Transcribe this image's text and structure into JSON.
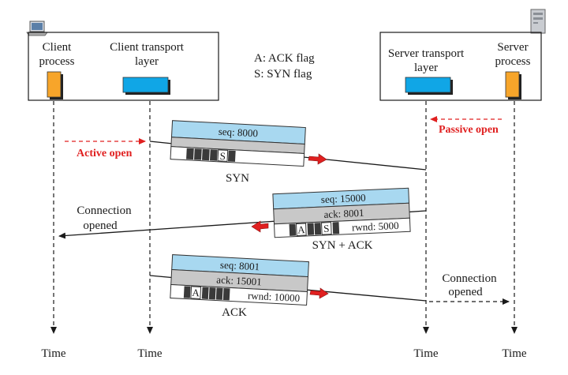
{
  "left_box": {
    "client_process": [
      "Client",
      "process"
    ],
    "client_transport": [
      "Client transport",
      "layer"
    ]
  },
  "right_box": {
    "server_transport": [
      "Server transport",
      "layer"
    ],
    "server_process": [
      "Server",
      "process"
    ]
  },
  "legend": {
    "ack": "A: ACK flag",
    "syn": "S: SYN flag"
  },
  "events": {
    "active_open": "Active open",
    "passive_open": "Passive open",
    "connection_opened_client": [
      "Connection",
      "opened"
    ],
    "connection_opened_server": [
      "Connection",
      "opened"
    ]
  },
  "segments": {
    "syn": {
      "seq": "seq: 8000",
      "flag": "S",
      "caption": "SYN"
    },
    "synack": {
      "seq": "seq: 15000",
      "ack": "ack: 8001",
      "flag_a": "A",
      "flag_s": "S",
      "rwnd": "rwnd: 5000",
      "caption": "SYN + ACK"
    },
    "ack": {
      "seq": "seq: 8001",
      "ack": "ack: 15001",
      "flag_a": "A",
      "rwnd": "rwnd: 10000",
      "caption": "ACK"
    }
  },
  "time_labels": [
    "Time",
    "Time",
    "Time",
    "Time"
  ],
  "colors": {
    "client_process": "#f7a52a",
    "transport": "#10a6e6",
    "segment_header": "#a8d8f0",
    "segment_gray": "#c8c8c8",
    "red": "#e02020"
  }
}
